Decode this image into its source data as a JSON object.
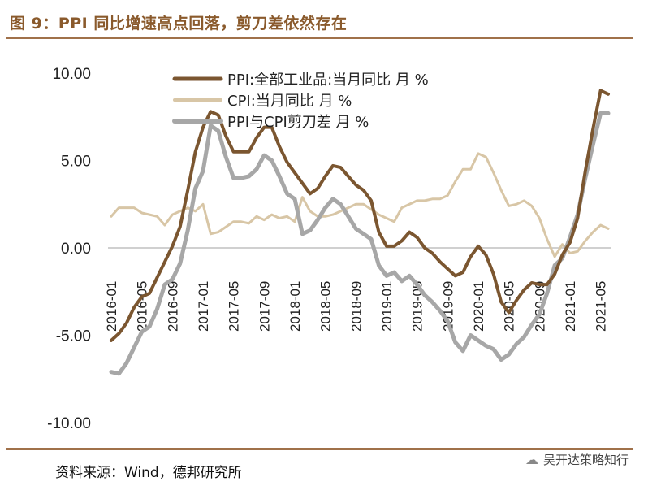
{
  "header": {
    "title": "图 9：PPI 同比增速高点回落，剪刀差依然存在"
  },
  "footer": {
    "source": "资料来源：Wind，德邦研究所",
    "watermark": "吴开达策略知行",
    "watermark_icon": "wechat-icon"
  },
  "colors": {
    "ppi": "#7b5630",
    "cpi": "#d8c6a6",
    "spread": "#a7a7a7",
    "rule": "#a0714a",
    "title": "#8a5a2c"
  },
  "chart_data": {
    "type": "line",
    "title": "PPI 同比增速高点回落，剪刀差依然存在",
    "xlabel": "",
    "ylabel": "",
    "ylim": [
      -10,
      10
    ],
    "ytick_labels": [
      "10.00",
      "5.00",
      "0.00",
      "-5.00",
      "-10.00"
    ],
    "yticks": [
      10,
      5,
      0,
      -5,
      -10
    ],
    "xtick_labels": [
      "2016-01",
      "2016-05",
      "2016-09",
      "2017-01",
      "2017-05",
      "2017-09",
      "2018-01",
      "2018-05",
      "2018-09",
      "2019-01",
      "2019-05",
      "2019-09",
      "2020-01",
      "2020-05",
      "2020-09",
      "2021-01",
      "2021-05"
    ],
    "legend_position": "top-left",
    "x": [
      "2016-01",
      "2016-02",
      "2016-03",
      "2016-04",
      "2016-05",
      "2016-06",
      "2016-07",
      "2016-08",
      "2016-09",
      "2016-10",
      "2016-11",
      "2016-12",
      "2017-01",
      "2017-02",
      "2017-03",
      "2017-04",
      "2017-05",
      "2017-06",
      "2017-07",
      "2017-08",
      "2017-09",
      "2017-10",
      "2017-11",
      "2017-12",
      "2018-01",
      "2018-02",
      "2018-03",
      "2018-04",
      "2018-05",
      "2018-06",
      "2018-07",
      "2018-08",
      "2018-09",
      "2018-10",
      "2018-11",
      "2018-12",
      "2019-01",
      "2019-02",
      "2019-03",
      "2019-04",
      "2019-05",
      "2019-06",
      "2019-07",
      "2019-08",
      "2019-09",
      "2019-10",
      "2019-11",
      "2019-12",
      "2020-01",
      "2020-02",
      "2020-03",
      "2020-04",
      "2020-05",
      "2020-06",
      "2020-07",
      "2020-08",
      "2020-09",
      "2020-10",
      "2020-11",
      "2020-12",
      "2021-01",
      "2021-02",
      "2021-03",
      "2021-04",
      "2021-05",
      "2021-06"
    ],
    "series": [
      {
        "name": "PPI:全部工业品:当月同比 月 %",
        "color": "#7b5630",
        "width": 4,
        "values": [
          -5.3,
          -4.9,
          -4.3,
          -3.4,
          -2.8,
          -2.6,
          -1.7,
          -0.8,
          0.1,
          1.2,
          3.3,
          5.5,
          6.9,
          7.8,
          7.6,
          6.4,
          5.5,
          5.5,
          5.5,
          6.3,
          6.9,
          6.9,
          5.8,
          4.9,
          4.3,
          3.7,
          3.1,
          3.4,
          4.1,
          4.7,
          4.6,
          4.1,
          3.6,
          3.3,
          2.7,
          0.9,
          0.1,
          0.1,
          0.4,
          0.9,
          0.6,
          0.0,
          -0.3,
          -0.8,
          -1.2,
          -1.6,
          -1.4,
          -0.5,
          0.1,
          -0.4,
          -1.5,
          -3.1,
          -3.7,
          -3.0,
          -2.4,
          -2.0,
          -2.1,
          -2.1,
          -1.5,
          -0.4,
          0.3,
          1.7,
          4.4,
          6.8,
          9.0,
          8.8
        ]
      },
      {
        "name": "CPI:当月同比 月 %",
        "color": "#d8c6a6",
        "width": 3,
        "values": [
          1.8,
          2.3,
          2.3,
          2.3,
          2.0,
          1.9,
          1.8,
          1.3,
          1.9,
          2.1,
          2.3,
          2.1,
          2.5,
          0.8,
          0.9,
          1.2,
          1.5,
          1.5,
          1.4,
          1.8,
          1.6,
          1.9,
          1.7,
          1.8,
          1.5,
          2.9,
          2.1,
          1.8,
          1.8,
          1.9,
          2.1,
          2.3,
          2.5,
          2.5,
          2.2,
          1.9,
          1.7,
          1.5,
          2.3,
          2.5,
          2.7,
          2.7,
          2.8,
          2.8,
          3.0,
          3.8,
          4.5,
          4.5,
          5.4,
          5.2,
          4.3,
          3.3,
          2.4,
          2.5,
          2.7,
          2.4,
          1.7,
          0.5,
          -0.5,
          0.2,
          -0.3,
          -0.2,
          0.4,
          0.9,
          1.3,
          1.1
        ]
      },
      {
        "name": "PPI与CPI剪刀差 月 %",
        "color": "#a7a7a7",
        "width": 5,
        "values": [
          -7.1,
          -7.2,
          -6.6,
          -5.7,
          -4.8,
          -4.5,
          -3.5,
          -2.1,
          -1.8,
          -0.9,
          1.0,
          3.4,
          4.4,
          7.0,
          6.7,
          5.2,
          4.0,
          4.0,
          4.1,
          4.5,
          5.3,
          5.0,
          4.1,
          3.1,
          2.8,
          0.8,
          1.0,
          1.6,
          2.3,
          2.8,
          2.5,
          1.8,
          1.1,
          0.8,
          0.5,
          -1.0,
          -1.6,
          -1.4,
          -1.9,
          -1.6,
          -2.1,
          -2.7,
          -3.1,
          -3.6,
          -4.2,
          -5.4,
          -5.9,
          -5.0,
          -5.3,
          -5.6,
          -5.8,
          -6.4,
          -6.1,
          -5.5,
          -5.1,
          -4.4,
          -3.8,
          -2.6,
          -1.0,
          -0.6,
          0.6,
          1.9,
          4.0,
          5.9,
          7.7,
          7.7
        ]
      }
    ]
  }
}
